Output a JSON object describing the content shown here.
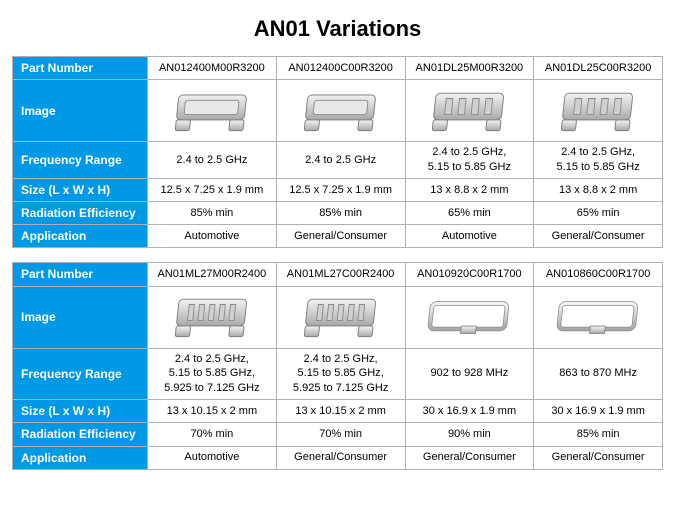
{
  "title": "AN01 Variations",
  "row_labels": {
    "part_number": "Part Number",
    "image": "Image",
    "frequency_range": "Frequency Range",
    "size": "Size (L x W x H)",
    "radiation_efficiency": "Radiation Efficiency",
    "application": "Application"
  },
  "colors": {
    "header_bg": "#0099e5",
    "header_text": "#ffffff",
    "cell_bg": "#ffffff",
    "cell_text": "#000000",
    "border": "#b0b0b0"
  },
  "tables": [
    {
      "items": [
        {
          "part_number": "AN012400M00R3200",
          "image_type": "clip_simple",
          "frequency_range": "2.4 to 2.5 GHz",
          "size": "12.5 x 7.25 x 1.9 mm",
          "radiation_efficiency": "85% min",
          "application": "Automotive"
        },
        {
          "part_number": "AN012400C00R3200",
          "image_type": "clip_simple",
          "frequency_range": "2.4 to 2.5 GHz",
          "size": "12.5 x 7.25 x 1.9 mm",
          "radiation_efficiency": "85% min",
          "application": "General/Consumer"
        },
        {
          "part_number": "AN01DL25M00R3200",
          "image_type": "clip_slots4",
          "frequency_range": "2.4 to 2.5 GHz,\n5.15 to 5.85 GHz",
          "size": "13 x 8.8 x 2 mm",
          "radiation_efficiency": "65% min",
          "application": "Automotive"
        },
        {
          "part_number": "AN01DL25C00R3200",
          "image_type": "clip_slots4",
          "frequency_range": "2.4 to 2.5 GHz,\n5.15 to 5.85 GHz",
          "size": "13 x 8.8 x 2 mm",
          "radiation_efficiency": "65% min",
          "application": "General/Consumer"
        }
      ]
    },
    {
      "items": [
        {
          "part_number": "AN01ML27M00R2400",
          "image_type": "clip_slots5",
          "frequency_range": "2.4 to 2.5 GHz,\n5.15 to 5.85 GHz,\n5.925 to 7.125 GHz",
          "size": "13 x 10.15 x 2 mm",
          "radiation_efficiency": "70% min",
          "application": "Automotive"
        },
        {
          "part_number": "AN01ML27C00R2400",
          "image_type": "clip_slots5",
          "frequency_range": "2.4 to 2.5 GHz,\n5.15 to 5.85 GHz,\n5.925 to 7.125 GHz",
          "size": "13 x 10.15 x 2 mm",
          "radiation_efficiency": "70% min",
          "application": "General/Consumer"
        },
        {
          "part_number": "AN010920C00R1700",
          "image_type": "frame_open",
          "frequency_range": "902 to 928 MHz",
          "size": "30 x 16.9 x 1.9 mm",
          "radiation_efficiency": "90% min",
          "application": "General/Consumer"
        },
        {
          "part_number": "AN010860C00R1700",
          "image_type": "frame_open",
          "frequency_range": "863 to 870 MHz",
          "size": "30 x 16.9 x 1.9 mm",
          "radiation_efficiency": "85% min",
          "application": "General/Consumer"
        }
      ]
    }
  ]
}
